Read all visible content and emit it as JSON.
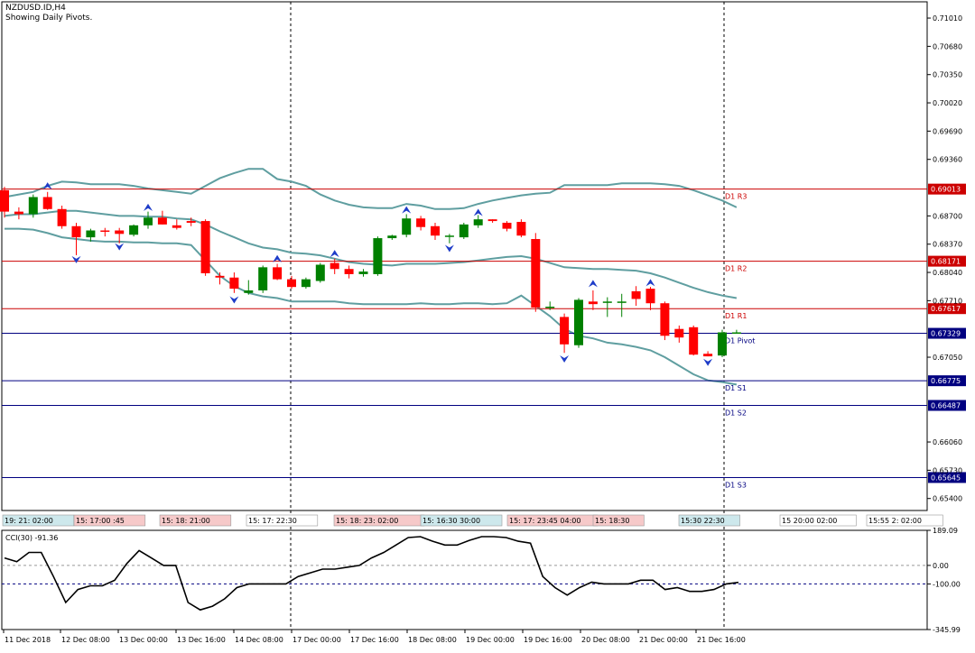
{
  "header": {
    "symbol_line": "NZDUSD.ID,H4",
    "status_line": "Showing Daily Pivots."
  },
  "chart_data": {
    "type": "candlestick",
    "symbol": "NZDUSD.ID",
    "timeframe": "H4",
    "price_axis": {
      "ylim": [
        0.6526,
        0.712
      ],
      "ticks": [
        "0.71010",
        "0.70680",
        "0.70350",
        "0.70020",
        "0.69690",
        "0.69360",
        "0.68700",
        "0.68370",
        "0.68040",
        "0.67710",
        "0.67050",
        "0.66060",
        "0.65730",
        "0.65400"
      ]
    },
    "time_axis": {
      "labels": [
        "11 Dec 2018",
        "12 Dec 08:00",
        "13 Dec 00:00",
        "13 Dec 16:00",
        "14 Dec 08:00",
        "17 Dec 00:00",
        "17 Dec 16:00",
        "18 Dec 08:00",
        "19 Dec 00:00",
        "19 Dec 16:00",
        "20 Dec 08:00",
        "21 Dec 00:00",
        "21 Dec 16:00"
      ]
    },
    "pivot_levels": [
      {
        "name": "D1 R3",
        "value": "0.69013",
        "color": "#cc0000",
        "price": 0.69013
      },
      {
        "name": "D1 R2",
        "value": "0.68171",
        "color": "#cc0000",
        "price": 0.68171
      },
      {
        "name": "D1 R1",
        "value": "0.67617",
        "color": "#cc0000",
        "price": 0.67617
      },
      {
        "name": "D1 Pivot",
        "value": "0.67329",
        "color": "#000080",
        "price": 0.67329
      },
      {
        "name": "D1 S1",
        "value": "0.66775",
        "color": "#000080",
        "price": 0.66775
      },
      {
        "name": "D1 S2",
        "value": "0.66487",
        "color": "#000080",
        "price": 0.66487
      },
      {
        "name": "D1 S3",
        "value": "0.65645",
        "color": "#000080",
        "price": 0.65645
      }
    ],
    "candles": [
      [
        0.69,
        0.6904,
        0.6868,
        0.6875
      ],
      [
        0.6875,
        0.688,
        0.6866,
        0.6872
      ],
      [
        0.6872,
        0.6895,
        0.6868,
        0.6892
      ],
      [
        0.6892,
        0.6898,
        0.6877,
        0.6878
      ],
      [
        0.6878,
        0.6882,
        0.6855,
        0.6858
      ],
      [
        0.6858,
        0.6862,
        0.6824,
        0.6845
      ],
      [
        0.6845,
        0.6855,
        0.684,
        0.6853
      ],
      [
        0.6853,
        0.6856,
        0.6846,
        0.6852
      ],
      [
        0.6853,
        0.6856,
        0.6838,
        0.6849
      ],
      [
        0.6848,
        0.686,
        0.6846,
        0.6859
      ],
      [
        0.6859,
        0.6875,
        0.6855,
        0.6868
      ],
      [
        0.6868,
        0.6876,
        0.686,
        0.686
      ],
      [
        0.6859,
        0.6866,
        0.6854,
        0.6856
      ],
      [
        0.6864,
        0.6868,
        0.6858,
        0.6862
      ],
      [
        0.6864,
        0.6866,
        0.68,
        0.6803
      ],
      [
        0.68,
        0.6804,
        0.679,
        0.6798
      ],
      [
        0.6798,
        0.6804,
        0.678,
        0.6785
      ],
      [
        0.678,
        0.6795,
        0.6778,
        0.6783
      ],
      [
        0.6783,
        0.6812,
        0.678,
        0.681
      ],
      [
        0.681,
        0.6814,
        0.6795,
        0.6796
      ],
      [
        0.6796,
        0.68,
        0.6785,
        0.6787
      ],
      [
        0.6787,
        0.6798,
        0.6785,
        0.6796
      ],
      [
        0.6794,
        0.6815,
        0.6792,
        0.6813
      ],
      [
        0.6815,
        0.682,
        0.6802,
        0.6808
      ],
      [
        0.6808,
        0.6812,
        0.6797,
        0.6802
      ],
      [
        0.6802,
        0.6808,
        0.6799,
        0.6805
      ],
      [
        0.6802,
        0.6846,
        0.68,
        0.6844
      ],
      [
        0.6844,
        0.6848,
        0.6842,
        0.6847
      ],
      [
        0.6848,
        0.6872,
        0.6845,
        0.6867
      ],
      [
        0.6867,
        0.687,
        0.6853,
        0.6857
      ],
      [
        0.6858,
        0.6862,
        0.6842,
        0.6847
      ],
      [
        0.6846,
        0.6849,
        0.6838,
        0.6847
      ],
      [
        0.6845,
        0.6862,
        0.6843,
        0.686
      ],
      [
        0.6859,
        0.6871,
        0.6856,
        0.6866
      ],
      [
        0.6866,
        0.6866,
        0.6862,
        0.6864
      ],
      [
        0.6862,
        0.6864,
        0.6852,
        0.6855
      ],
      [
        0.6863,
        0.6866,
        0.6845,
        0.6847
      ],
      [
        0.6843,
        0.685,
        0.6758,
        0.6763
      ],
      [
        0.6763,
        0.677,
        0.676,
        0.6764
      ],
      [
        0.6752,
        0.6756,
        0.671,
        0.672
      ],
      [
        0.6719,
        0.6774,
        0.6716,
        0.6772
      ],
      [
        0.677,
        0.6783,
        0.676,
        0.6767
      ],
      [
        0.677,
        0.6775,
        0.6752,
        0.677
      ],
      [
        0.677,
        0.6779,
        0.6752,
        0.677
      ],
      [
        0.6782,
        0.6788,
        0.6765,
        0.6773
      ],
      [
        0.6785,
        0.6787,
        0.676,
        0.6768
      ],
      [
        0.6768,
        0.677,
        0.6725,
        0.673
      ],
      [
        0.6738,
        0.6742,
        0.6722,
        0.6728
      ],
      [
        0.674,
        0.6742,
        0.6707,
        0.6708
      ],
      [
        0.6709,
        0.6712,
        0.6706,
        0.6706
      ],
      [
        0.6707,
        0.6737,
        0.6705,
        0.6734
      ],
      [
        0.6733,
        0.6737,
        0.6733,
        0.6734
      ]
    ],
    "upper_band": [
      0.6892,
      0.6895,
      0.6898,
      0.6905,
      0.691,
      0.6909,
      0.6907,
      0.6907,
      0.6907,
      0.6905,
      0.6902,
      0.69,
      0.6898,
      0.6896,
      0.6905,
      0.6914,
      0.692,
      0.6925,
      0.6925,
      0.6913,
      0.691,
      0.6905,
      0.6895,
      0.6888,
      0.6883,
      0.688,
      0.6879,
      0.6879,
      0.6884,
      0.6882,
      0.6878,
      0.6878,
      0.6879,
      0.6884,
      0.6888,
      0.6891,
      0.6894,
      0.6896,
      0.6897,
      0.6906,
      0.6906,
      0.6906,
      0.6906,
      0.6908,
      0.6908,
      0.6908,
      0.6907,
      0.6905,
      0.69,
      0.6894,
      0.6888,
      0.688
    ],
    "lower_band": [
      0.6855,
      0.6855,
      0.6854,
      0.685,
      0.6845,
      0.6843,
      0.6841,
      0.684,
      0.684,
      0.6839,
      0.6839,
      0.6838,
      0.6838,
      0.6836,
      0.6818,
      0.68,
      0.6788,
      0.678,
      0.6776,
      0.6774,
      0.677,
      0.677,
      0.677,
      0.677,
      0.6768,
      0.6767,
      0.6767,
      0.6767,
      0.6767,
      0.6768,
      0.6767,
      0.6767,
      0.6768,
      0.6768,
      0.6767,
      0.6768,
      0.6777,
      0.6765,
      0.6753,
      0.6738,
      0.673,
      0.6727,
      0.6722,
      0.672,
      0.6717,
      0.6713,
      0.6705,
      0.6695,
      0.6685,
      0.6678,
      0.6676,
      0.6673
    ],
    "middle_band": [
      0.687,
      0.6872,
      0.6872,
      0.6874,
      0.6876,
      0.6876,
      0.6874,
      0.6872,
      0.687,
      0.687,
      0.6869,
      0.6869,
      0.6867,
      0.6866,
      0.686,
      0.6852,
      0.6845,
      0.6838,
      0.6833,
      0.6831,
      0.6827,
      0.6826,
      0.6824,
      0.682,
      0.6816,
      0.6814,
      0.6813,
      0.6812,
      0.6814,
      0.6814,
      0.6814,
      0.6815,
      0.6816,
      0.6818,
      0.682,
      0.6822,
      0.6823,
      0.682,
      0.6815,
      0.681,
      0.6809,
      0.6808,
      0.6808,
      0.6807,
      0.6806,
      0.6803,
      0.6798,
      0.6792,
      0.6786,
      0.6781,
      0.6777,
      0.6774
    ],
    "fractals_up": [
      [
        3,
        0.6904
      ],
      [
        10,
        0.6879
      ],
      [
        19,
        0.6819
      ],
      [
        23,
        0.6825
      ],
      [
        28,
        0.6876
      ],
      [
        33,
        0.6873
      ],
      [
        41,
        0.679
      ],
      [
        45,
        0.6791
      ]
    ],
    "fractals_down": [
      [
        5,
        0.682
      ],
      [
        8,
        0.6835
      ],
      [
        16,
        0.6773
      ],
      [
        31,
        0.6833
      ],
      [
        39,
        0.6704
      ],
      [
        49,
        0.67
      ]
    ],
    "cci": {
      "label": "CCI(30) -91.36",
      "levels": [
        "189.09",
        "0.00",
        "-100.00",
        "-345.99"
      ],
      "range": [
        -345.99,
        189.09
      ],
      "values": [
        40,
        20,
        70,
        70,
        -60,
        -200,
        -130,
        -110,
        -110,
        -80,
        10,
        80,
        40,
        0,
        0,
        -200,
        -240,
        -220,
        -180,
        -120,
        -100,
        -100,
        -100,
        -100,
        -60,
        -40,
        -20,
        -20,
        -10,
        0,
        40,
        70,
        110,
        150,
        155,
        130,
        110,
        110,
        135,
        155,
        155,
        150,
        130,
        120,
        -60,
        -120,
        -160,
        -120,
        -90,
        -100,
        -100,
        -100,
        -80,
        -80,
        -130,
        -120,
        -140,
        -140,
        -130,
        -100,
        -91.36
      ]
    },
    "time_tags": [
      {
        "text": "19: 21: 02:00",
        "bg": "#cde8ec"
      },
      {
        "text": "15: 17:00 :45",
        "bg": "#f6c9c9"
      },
      {
        "text": "15: 18: 21:00",
        "bg": "#f6c9c9"
      },
      {
        "text": "15: 17: 22:30",
        "bg": "#ffffff"
      },
      {
        "text": "15: 18: 23: 02:00",
        "bg": "#f6c9c9"
      },
      {
        "text": "15: 16:30 30:00",
        "bg": "#cde8ec"
      },
      {
        "text": "15: 17: 23:45 04:00",
        "bg": "#f6c9c9"
      },
      {
        "text": "15: 18:30",
        "bg": "#f6c9c9"
      },
      {
        "text": "15:30 22:30",
        "bg": "#cde8ec"
      },
      {
        "text": "15 20:00 02:00",
        "bg": "#ffffff"
      },
      {
        "text": "15:55 2: 02:00",
        "bg": "#ffffff"
      }
    ],
    "colors": {
      "bull": "#008000",
      "bear": "#ff0000",
      "band": "#5f9ea0",
      "fractal": "#1e3cc8",
      "cci": "#000000",
      "grid": "#000000"
    }
  }
}
